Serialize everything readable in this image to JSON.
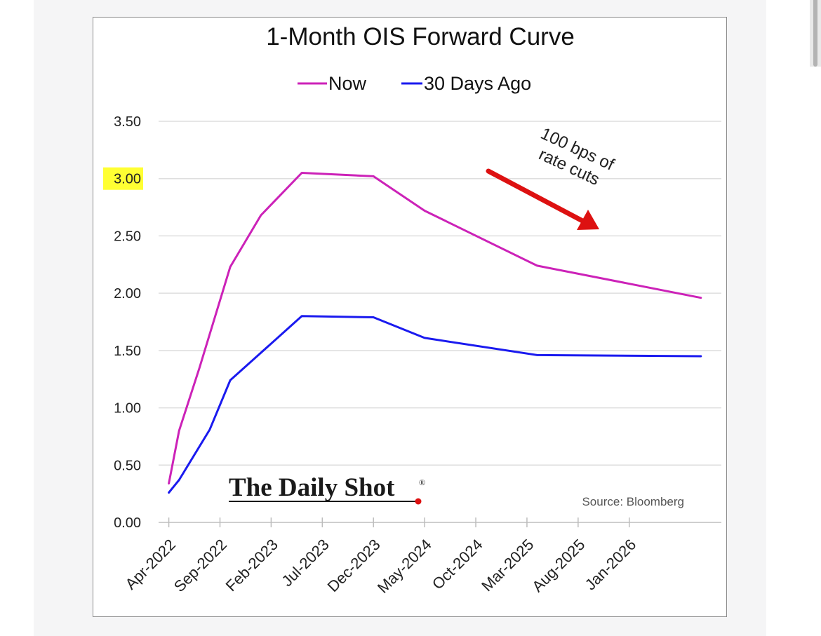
{
  "chart_data": {
    "type": "line",
    "title": "1-Month OIS Forward Curve",
    "xlabel": "",
    "ylabel": "",
    "ylim": [
      0,
      3.5
    ],
    "yticks": [
      "0.00",
      "0.50",
      "1.00",
      "1.50",
      "2.00",
      "2.50",
      "3.00",
      "3.50"
    ],
    "highlighted_ytick": "3.00",
    "xticks": [
      "Apr-2022",
      "Sep-2022",
      "Feb-2023",
      "Jul-2023",
      "Dec-2023",
      "May-2024",
      "Oct-2024",
      "Mar-2025",
      "Aug-2025",
      "Jan-2026"
    ],
    "xrange": [
      "2022-03",
      "2026-10"
    ],
    "series": [
      {
        "name": "Now",
        "color": "#cc22b8",
        "points": [
          {
            "x": "2022-04",
            "y": 0.34
          },
          {
            "x": "2022-05",
            "y": 0.8
          },
          {
            "x": "2022-07",
            "y": 1.35
          },
          {
            "x": "2022-10",
            "y": 2.23
          },
          {
            "x": "2023-01",
            "y": 2.68
          },
          {
            "x": "2023-05",
            "y": 3.05
          },
          {
            "x": "2023-12",
            "y": 3.02
          },
          {
            "x": "2024-05",
            "y": 2.72
          },
          {
            "x": "2025-04",
            "y": 2.24
          },
          {
            "x": "2026-08",
            "y": 1.96
          }
        ]
      },
      {
        "name": "30 Days Ago",
        "color": "#1a1aef",
        "points": [
          {
            "x": "2022-04",
            "y": 0.26
          },
          {
            "x": "2022-05",
            "y": 0.37
          },
          {
            "x": "2022-08",
            "y": 0.81
          },
          {
            "x": "2022-10",
            "y": 1.24
          },
          {
            "x": "2023-05",
            "y": 1.8
          },
          {
            "x": "2023-12",
            "y": 1.79
          },
          {
            "x": "2024-05",
            "y": 1.61
          },
          {
            "x": "2025-04",
            "y": 1.46
          },
          {
            "x": "2026-08",
            "y": 1.45
          }
        ]
      }
    ],
    "legend_position": "top-center",
    "grid": "horizontal",
    "annotation": {
      "lines": [
        "100 bps of",
        "rate cuts"
      ],
      "arrow_color": "#dd1111"
    },
    "source": "Source: Bloomberg",
    "watermark": "The Daily Shot",
    "watermark_mark": "®"
  }
}
